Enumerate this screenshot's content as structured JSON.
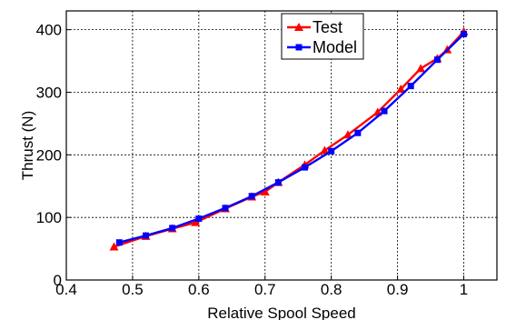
{
  "chart_data": {
    "type": "line",
    "xlabel": "Relative Spool Speed",
    "ylabel": "Thrust (N)",
    "xlim": [
      0.4,
      1.05
    ],
    "ylim": [
      0,
      430
    ],
    "xticks": [
      0.4,
      0.5,
      0.6,
      0.7,
      0.8,
      0.9,
      1.0
    ],
    "xtick_labels": [
      "0.4",
      "0.5",
      "0.6",
      "0.7",
      "0.8",
      "0.9",
      "1"
    ],
    "yticks": [
      0,
      100,
      200,
      300,
      400
    ],
    "ytick_labels": [
      "0",
      "100",
      "200",
      "300",
      "400"
    ],
    "grid": true,
    "legend_position": "top-center",
    "series": [
      {
        "name": "Test",
        "color": "#ff0000",
        "marker": "triangle",
        "x": [
          0.472,
          0.52,
          0.56,
          0.595,
          0.64,
          0.68,
          0.7,
          0.72,
          0.76,
          0.79,
          0.825,
          0.87,
          0.905,
          0.935,
          0.96,
          0.975,
          1.0
        ],
        "y": [
          53,
          70,
          82,
          92,
          114,
          133,
          141,
          156,
          184,
          207,
          232,
          268,
          305,
          338,
          354,
          368,
          397
        ]
      },
      {
        "name": "Model",
        "color": "#0000ff",
        "marker": "square",
        "x": [
          0.48,
          0.52,
          0.56,
          0.6,
          0.64,
          0.68,
          0.72,
          0.76,
          0.8,
          0.84,
          0.88,
          0.92,
          0.96,
          1.0
        ],
        "y": [
          60,
          71,
          83,
          98,
          115,
          134,
          156,
          180,
          206,
          235,
          270,
          310,
          352,
          393
        ]
      }
    ]
  }
}
